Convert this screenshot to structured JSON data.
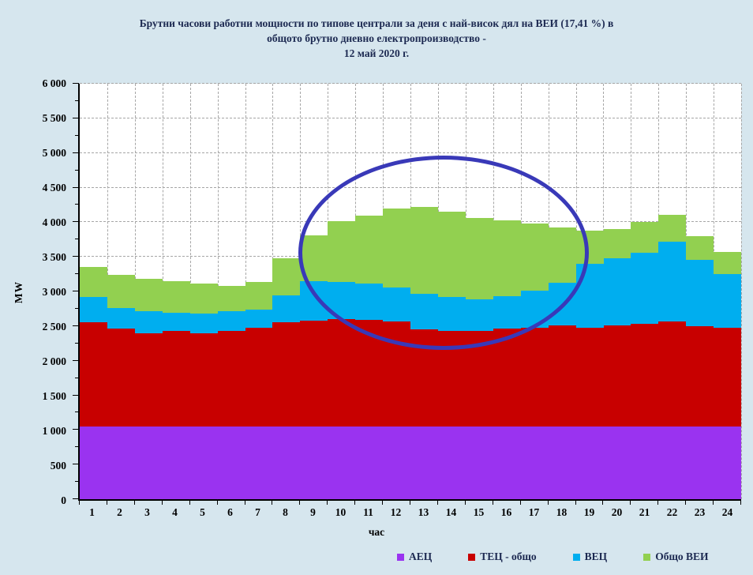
{
  "title": {
    "line1": "Брутни часови работни мощности по типове централи за деня с най-висок дял на ВЕИ (17,41 %) в",
    "line2": "общото брутно дневно електропроизводство -",
    "line3": "12 май 2020 г."
  },
  "chart_data": {
    "type": "area",
    "stacked": true,
    "categories": [
      "1",
      "2",
      "3",
      "4",
      "5",
      "6",
      "7",
      "8",
      "9",
      "10",
      "11",
      "12",
      "13",
      "14",
      "15",
      "16",
      "17",
      "18",
      "19",
      "20",
      "21",
      "22",
      "23",
      "24"
    ],
    "xlabel": "час",
    "ylabel": "MW",
    "ylim": [
      0,
      6000
    ],
    "ytick_step": 500,
    "ytick_minor_step": 250,
    "ytick_labels": [
      "0",
      "500",
      "1 000",
      "1 500",
      "2 000",
      "2 500",
      "3 000",
      "3 500",
      "4 000",
      "4 500",
      "5 000",
      "5 500",
      "6 000"
    ],
    "grid": true,
    "legend_position": "bottom",
    "series": [
      {
        "name": "АЕЦ",
        "color": "#9a33f0",
        "values": [
          1050,
          1050,
          1050,
          1050,
          1050,
          1050,
          1050,
          1050,
          1050,
          1050,
          1050,
          1050,
          1050,
          1050,
          1050,
          1050,
          1050,
          1050,
          1050,
          1050,
          1050,
          1050,
          1050,
          1050
        ]
      },
      {
        "name": "ТЕЦ - общо",
        "color": "#c80000",
        "values": [
          1510,
          1410,
          1350,
          1380,
          1350,
          1380,
          1420,
          1500,
          1530,
          1550,
          1535,
          1515,
          1400,
          1380,
          1380,
          1410,
          1430,
          1460,
          1430,
          1455,
          1480,
          1520,
          1445,
          1430
        ]
      },
      {
        "name": "ВЕЦ",
        "color": "#00aeef",
        "values": [
          360,
          300,
          310,
          260,
          280,
          280,
          270,
          390,
          565,
          540,
          535,
          495,
          520,
          490,
          460,
          470,
          535,
          615,
          925,
          975,
          1030,
          1150,
          965,
          770
        ]
      },
      {
        "name": "Общо ВЕИ",
        "color": "#92d050",
        "values": [
          430,
          480,
          470,
          460,
          440,
          370,
          400,
          540,
          665,
          870,
          980,
          1140,
          1250,
          1230,
          1170,
          1100,
          965,
          795,
          475,
          425,
          450,
          385,
          340,
          325
        ]
      }
    ],
    "annotation": {
      "shape": "ellipse",
      "color": "#3939b8",
      "hour_span": [
        8,
        19
      ],
      "mw_span": [
        2270,
        4950
      ]
    }
  }
}
